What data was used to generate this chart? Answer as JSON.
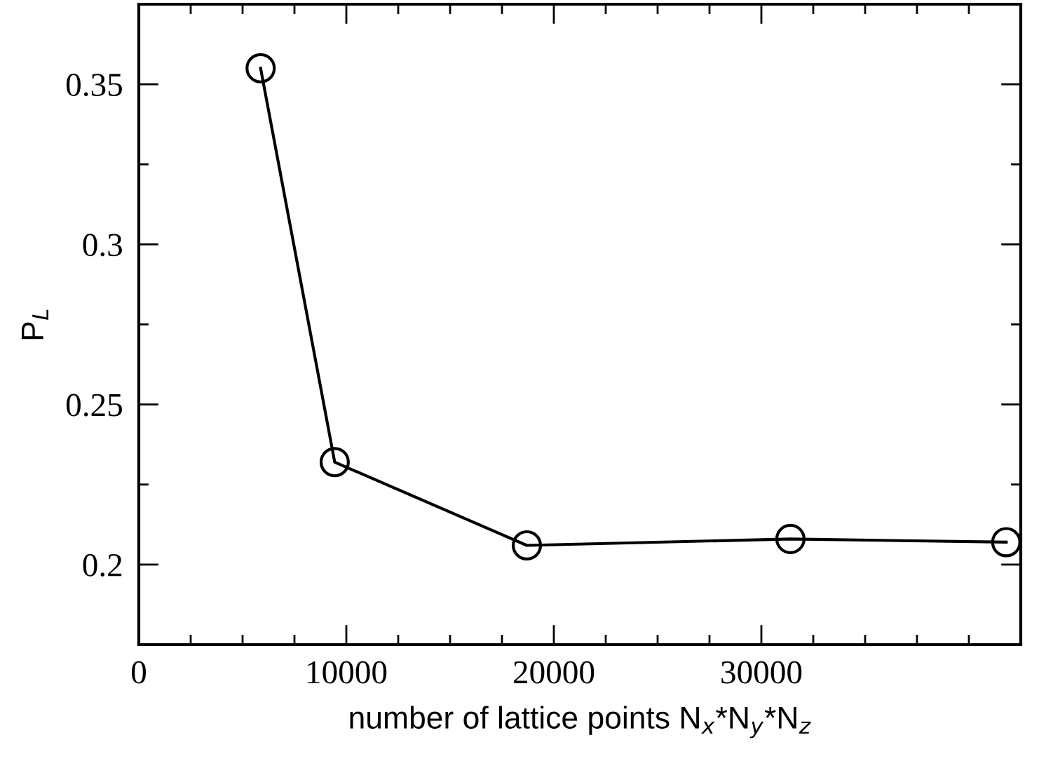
{
  "chart_data": {
    "type": "line",
    "xlabel": "number of lattice points N$_{x}$*N$_{y}$*N$_{z}$",
    "ylabel": "P$_{L}$",
    "x": [
      5870,
      9440,
      18700,
      31400,
      41800
    ],
    "series": [
      {
        "color": "#000000",
        "values": [
          0.355,
          0.232,
          0.206,
          0.208,
          0.207
        ]
      }
    ],
    "marker": "circle",
    "line_style": "solid",
    "grid": false,
    "legend": false,
    "xlim": [
      0,
      42500
    ],
    "ylim": [
      0.175,
      0.375
    ],
    "xticks": [
      0,
      {
        "value": 2500,
        "label": null
      },
      {
        "value": 5000,
        "label": null
      },
      {
        "value": 7500,
        "label": null
      },
      10000,
      {
        "value": 12500,
        "label": null
      },
      {
        "value": 15000,
        "label": null
      },
      {
        "value": 17500,
        "label": null
      },
      20000,
      {
        "value": 22500,
        "label": null
      },
      {
        "value": 25000,
        "label": null
      },
      {
        "value": 27500,
        "label": null
      },
      30000,
      {
        "value": 32500,
        "label": null
      },
      {
        "value": 35000,
        "label": null
      },
      {
        "value": 37500,
        "label": null
      },
      {
        "value": 40000,
        "label": null
      }
    ],
    "yticks": [
      {
        "value": 0.175,
        "label": null
      },
      0.2,
      {
        "value": 0.225,
        "label": null
      },
      0.25,
      {
        "value": 0.275,
        "label": null
      },
      0.3,
      {
        "value": 0.325,
        "label": null
      },
      0.35
    ]
  }
}
